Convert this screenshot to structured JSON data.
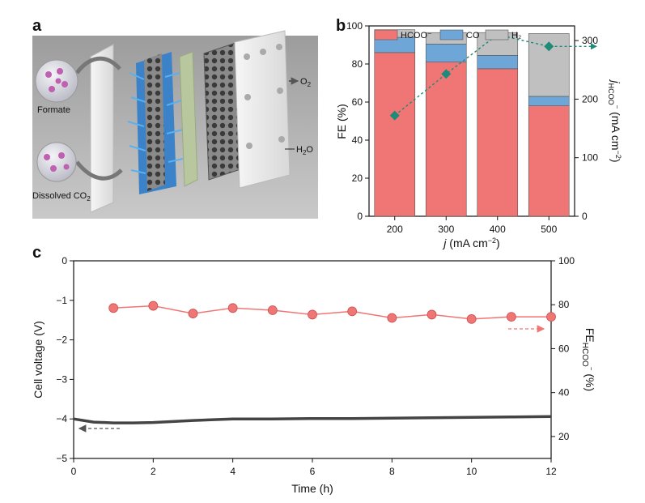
{
  "panel_a": {
    "letter": "a",
    "labels": {
      "formate": "Formate",
      "dissolved_co2": "Dissolved CO",
      "dissolved_co2_sub": "2",
      "o2": "O",
      "o2_sub": "2",
      "h2o": "H",
      "h2o_sub": "2",
      "h2o_tail": "O"
    }
  },
  "chart_data": [
    {
      "panel": "b",
      "type": "bar",
      "stacked": true,
      "categories": [
        "200",
        "300",
        "400",
        "500"
      ],
      "series": [
        {
          "name": "HCOO⁻",
          "color": "#f07575",
          "values": [
            86,
            81,
            77.5,
            58
          ]
        },
        {
          "name": "CO",
          "color": "#6ea6d8",
          "values": [
            8,
            9.5,
            7,
            5
          ]
        },
        {
          "name": "H₂",
          "color": "#c0c0c0",
          "values": [
            4,
            6,
            12,
            33
          ]
        }
      ],
      "line": {
        "axis": "right",
        "color": "#1e8a78",
        "marker": "diamond",
        "x": [
          "200",
          "300",
          "400",
          "500"
        ],
        "values": [
          172,
          243,
          310,
          290
        ]
      },
      "xlabel": "j (mA cm⁻²)",
      "ylabel": "FE (%)",
      "y2label": "jHCOO⁻ (mA cm⁻²)",
      "ylim": [
        0,
        100
      ],
      "y2lim": [
        0,
        325
      ],
      "yticks": [
        "0",
        "20",
        "40",
        "60",
        "80",
        "100"
      ],
      "y2ticks": [
        "0",
        "100",
        "200",
        "300"
      ],
      "legend": "top"
    },
    {
      "panel": "c",
      "type": "line",
      "xlabel": "Time (h)",
      "ylabel": "Cell voltage (V)",
      "y2label": "FEHCOO⁻ (%)",
      "xlim": [
        0,
        12
      ],
      "ylim": [
        -5,
        0
      ],
      "y2lim": [
        10,
        100
      ],
      "xticks": [
        "0",
        "2",
        "4",
        "6",
        "8",
        "10",
        "12"
      ],
      "yticks": [
        "0",
        "−1",
        "−2",
        "−3",
        "−4",
        "−5"
      ],
      "y2ticks": [
        "20",
        "40",
        "60",
        "80",
        "100"
      ],
      "series": [
        {
          "axis": "left",
          "color": "#444444",
          "marker": "none",
          "x": [
            0,
            0.5,
            1,
            1.5,
            2,
            3,
            4,
            5,
            6,
            7,
            8,
            9,
            10,
            11,
            12
          ],
          "values": [
            -4.0,
            -4.08,
            -4.1,
            -4.1,
            -4.09,
            -4.04,
            -4.0,
            -4.0,
            -3.99,
            -3.99,
            -3.98,
            -3.97,
            -3.96,
            -3.95,
            -3.94
          ]
        },
        {
          "axis": "right",
          "color": "#f07575",
          "marker": "circle",
          "x": [
            1,
            2,
            3,
            4,
            5,
            6,
            7,
            8,
            9,
            10,
            11,
            12
          ],
          "values": [
            78.5,
            79.5,
            76,
            78.5,
            77.5,
            75.5,
            77,
            74,
            75.5,
            73.5,
            74.5,
            74.5
          ]
        }
      ]
    }
  ]
}
